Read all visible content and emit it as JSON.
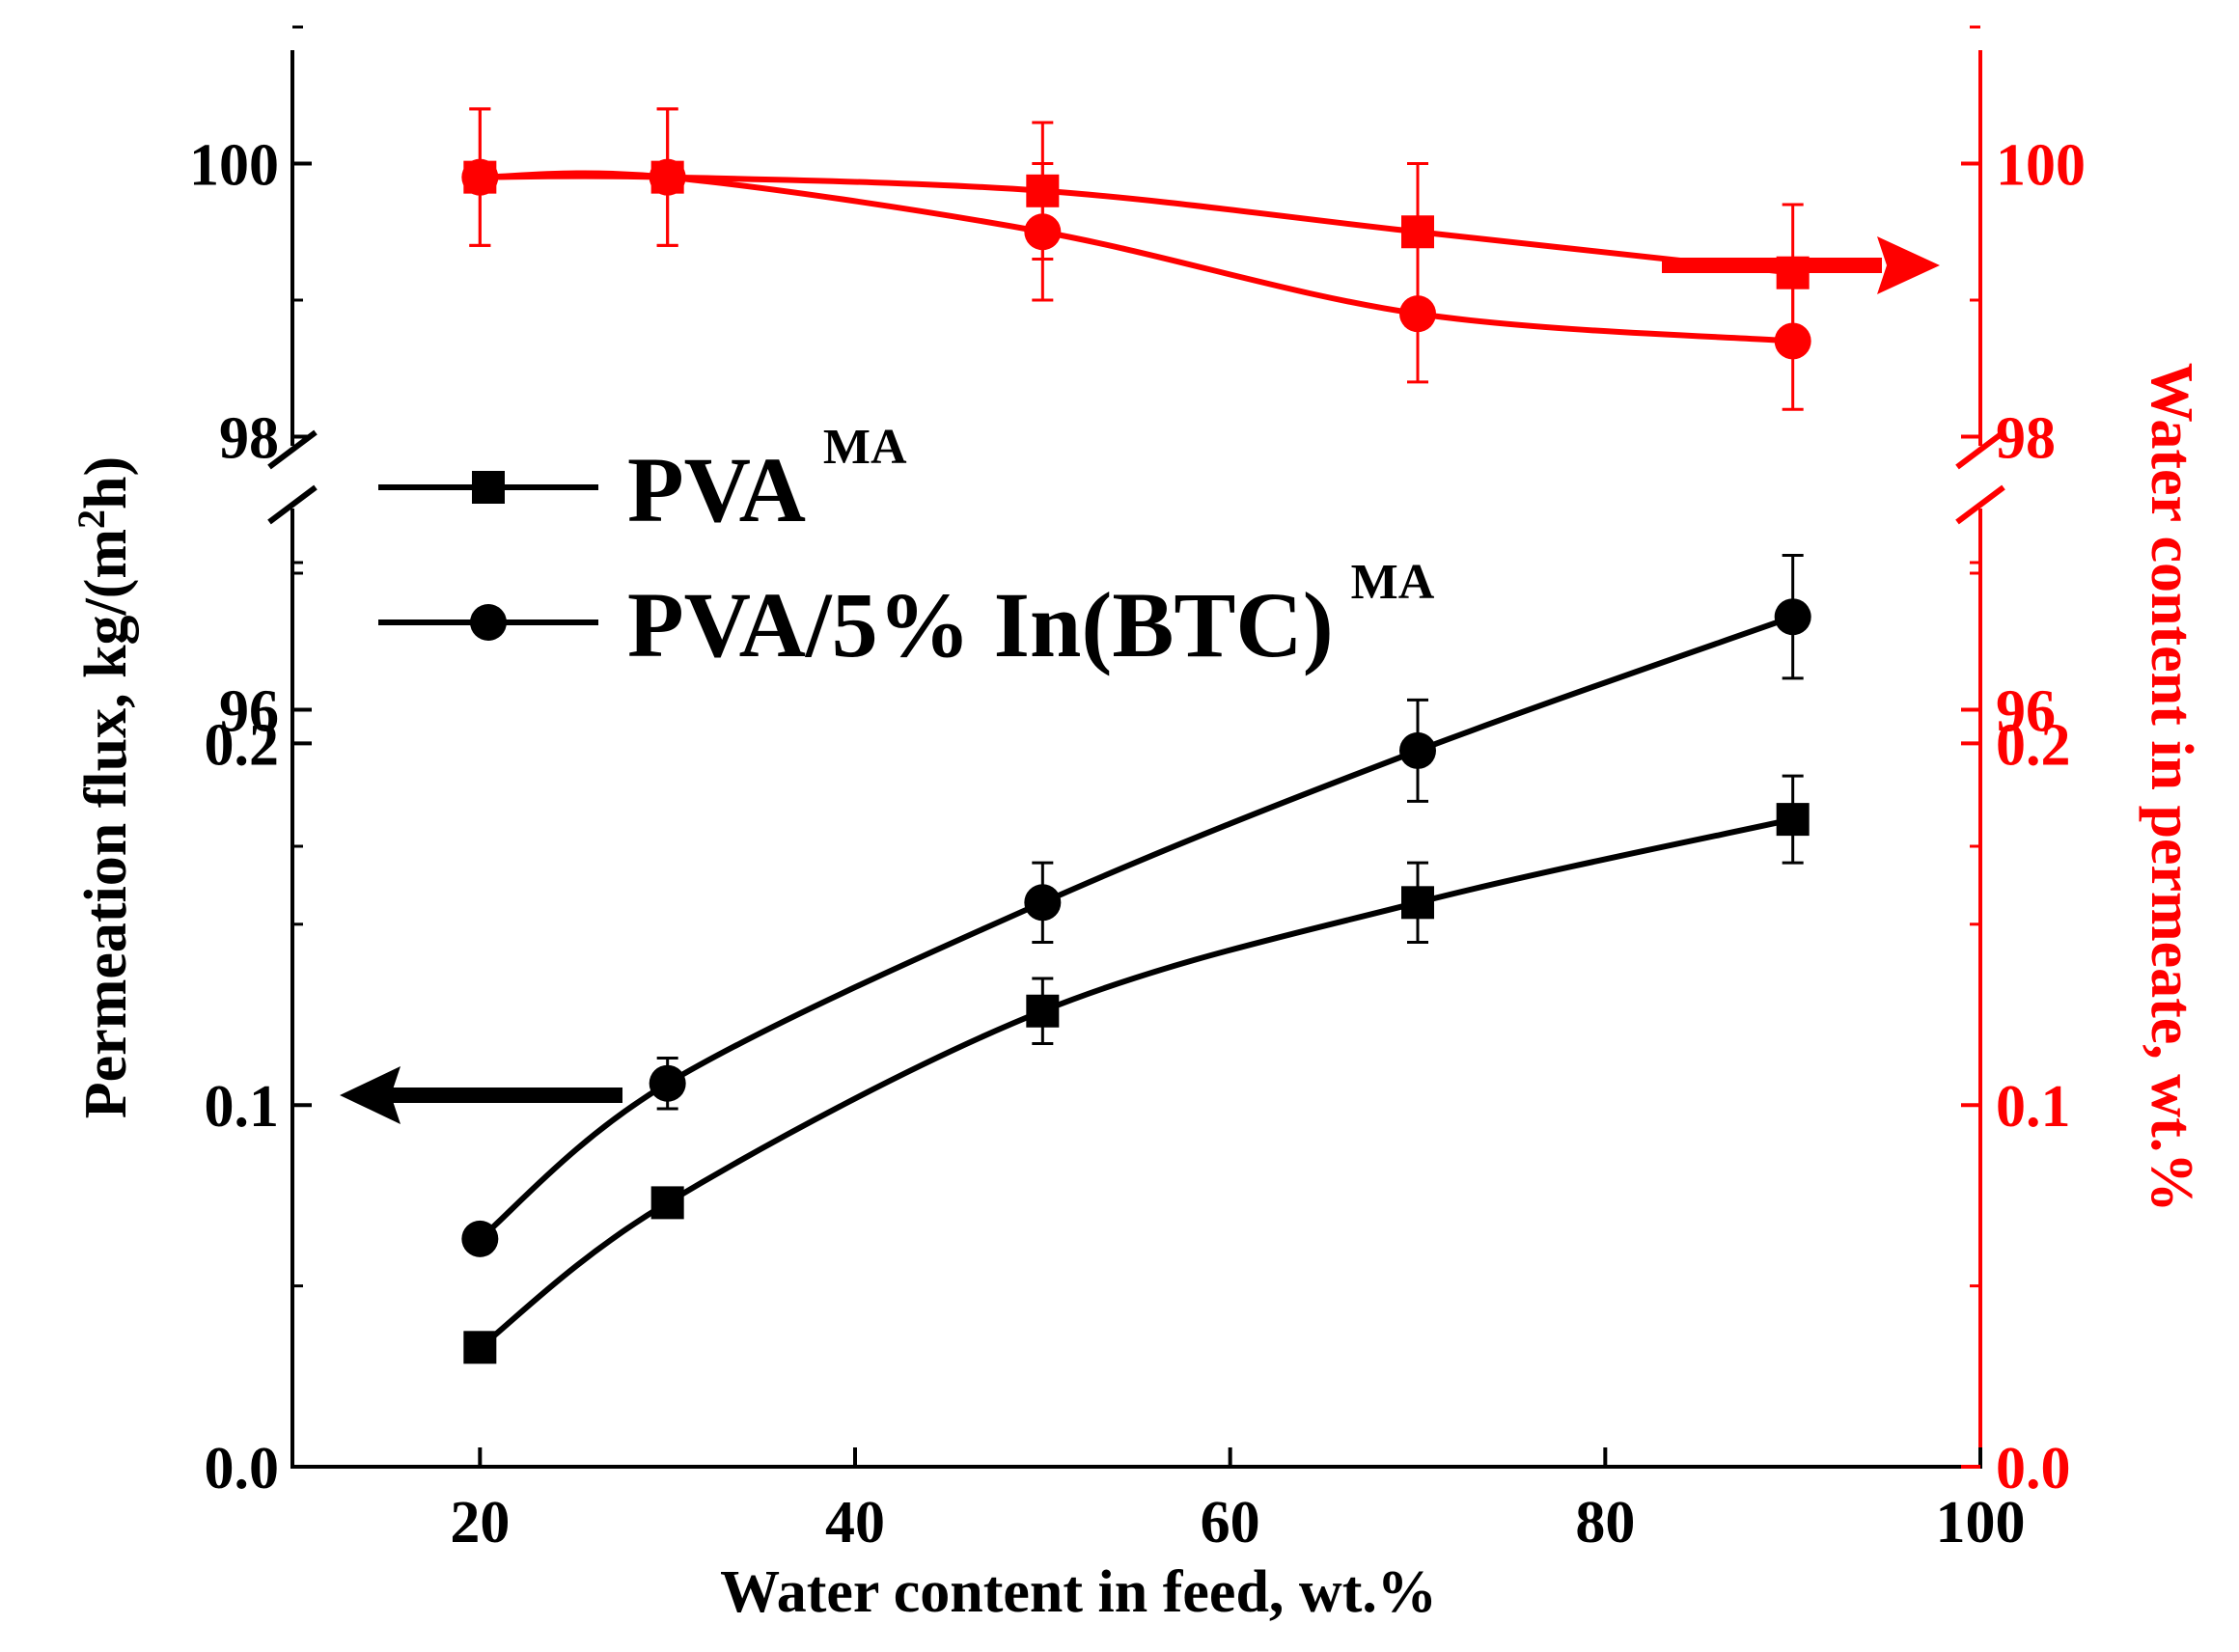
{
  "chart_data": {
    "type": "line",
    "xlabel": "Water content in feed, wt.%",
    "ylabel_left": "Permeation flux, kg/(m",
    "ylabel_left_sup": "2",
    "ylabel_left_tail": "h)",
    "ylabel_right": "Water content in permeate, wt.%",
    "xlim": [
      10,
      100
    ],
    "xticks": [
      "20",
      "40",
      "60",
      "80",
      "100"
    ],
    "xtick_values": [
      20,
      40,
      60,
      80,
      100
    ],
    "left_lower": {
      "ylim": [
        0,
        0.25
      ],
      "ticks": [
        "0.0",
        "0.1",
        "0.2"
      ],
      "tick_values": [
        0,
        0.1,
        0.2
      ]
    },
    "left_upper": {
      "ylim": [
        95,
        101
      ],
      "ticks": [
        "96",
        "98",
        "100"
      ],
      "tick_values": [
        96,
        98,
        100
      ]
    },
    "right_lower": {
      "ylim": [
        0,
        0.25
      ],
      "ticks": [
        "0.0",
        "0.1",
        "0.2"
      ],
      "tick_values": [
        0,
        0.1,
        0.2
      ]
    },
    "right_upper": {
      "ylim": [
        95,
        101
      ],
      "ticks": [
        "96",
        "98",
        "100"
      ],
      "tick_values": [
        96,
        98,
        100
      ]
    },
    "x": [
      20,
      30,
      50,
      70,
      90
    ],
    "series": [
      {
        "name": "PVA",
        "sup": "MA",
        "marker": "square",
        "axis": "flux",
        "color": "#000000",
        "values": [
          0.033,
          0.073,
          0.126,
          0.156,
          0.179
        ],
        "errors": [
          0,
          0,
          0.009,
          0.011,
          0.012
        ]
      },
      {
        "name": "PVA/5% In(BTC)",
        "sup": "MA",
        "marker": "circle",
        "axis": "flux",
        "color": "#000000",
        "values": [
          0.063,
          0.106,
          0.156,
          0.198,
          0.235
        ],
        "errors": [
          0,
          0.007,
          0.011,
          0.014,
          0.017
        ]
      },
      {
        "name": "PVA",
        "sup": "MA",
        "marker": "square",
        "axis": "water",
        "color": "#ff0000",
        "values": [
          99.9,
          99.9,
          99.8,
          99.5,
          99.2
        ],
        "errors": [
          0.5,
          0.5,
          0.5,
          0.5,
          0.5
        ]
      },
      {
        "name": "PVA/5% In(BTC)",
        "sup": "MA",
        "marker": "circle",
        "axis": "water",
        "color": "#ff0000",
        "values": [
          99.9,
          99.9,
          99.5,
          98.9,
          98.7
        ],
        "errors": [
          0.5,
          0.5,
          0.5,
          0.5,
          0.5
        ]
      }
    ],
    "legend": {
      "placement": "top-left",
      "entries": [
        {
          "label": "PVA",
          "sup": "MA",
          "marker": "square"
        },
        {
          "label": "PVA/5% In(BTC)",
          "sup": "MA",
          "marker": "circle"
        }
      ]
    },
    "annotations": [
      {
        "kind": "arrow",
        "direction": "left",
        "color": "#000000",
        "meaning": "flux series read on left axis"
      },
      {
        "kind": "arrow",
        "direction": "right",
        "color": "#ff0000",
        "meaning": "water content series read on right axis"
      }
    ],
    "axis_break": true,
    "grid": false,
    "colors": {
      "left_axis": "#000000",
      "right_axis": "#ff0000"
    }
  }
}
